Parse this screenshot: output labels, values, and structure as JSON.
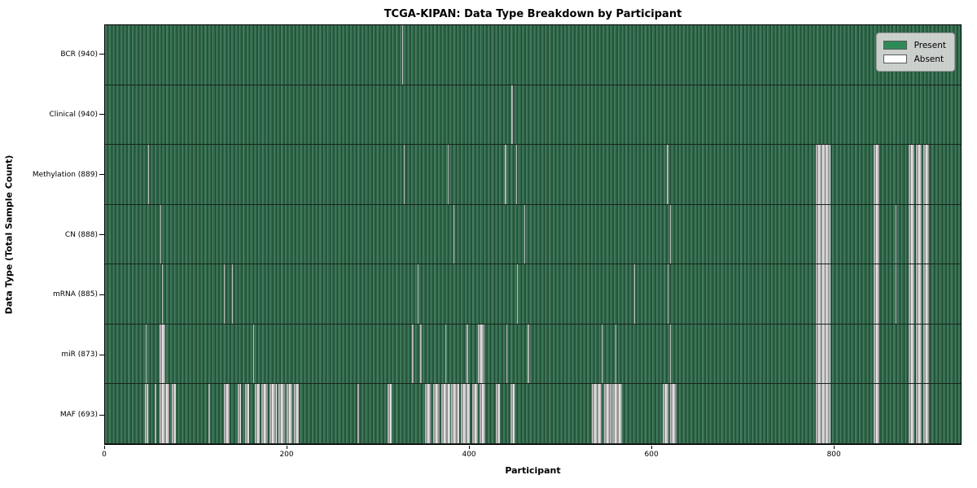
{
  "chart_data": {
    "type": "heatmap",
    "title": "TCGA-KIPAN: Data Type Breakdown by Participant",
    "xlabel": "Participant",
    "ylabel": "Data Type (Total Sample Count)",
    "x_max": 940,
    "x_ticks": [
      0,
      200,
      400,
      600,
      800
    ],
    "grid": false,
    "legend": {
      "position": "upper right",
      "entries": [
        {
          "label": "Present",
          "color": "#2e8b57"
        },
        {
          "label": "Absent",
          "color": "#ffffff"
        }
      ]
    },
    "cell_colors": {
      "present": "#2e8b57",
      "present_edge_dark": "#214f37",
      "absent": "#ffffff",
      "absent_shade": "#8f8f8f"
    },
    "rows": [
      {
        "label": "BCR (940)",
        "total_samples": 940,
        "absent_ranges": [
          [
            326.6,
            327.8
          ]
        ]
      },
      {
        "label": "Clinical (940)",
        "total_samples": 940,
        "absent_ranges": [
          [
            446.6,
            447.8
          ]
        ]
      },
      {
        "label": "Methylation (889)",
        "total_samples": 889,
        "absent_ranges": [
          [
            47,
            48.2
          ],
          [
            328,
            329.2
          ],
          [
            376.5,
            377.7
          ],
          [
            439.5,
            440.7
          ],
          [
            451.5,
            452.7
          ],
          [
            617.5,
            618.7
          ],
          [
            781,
            797
          ],
          [
            844,
            851
          ],
          [
            883,
            889
          ],
          [
            890.5,
            897
          ],
          [
            898.5,
            905
          ]
        ]
      },
      {
        "label": "CN (888)",
        "total_samples": 888,
        "absent_ranges": [
          [
            60.5,
            61.7
          ],
          [
            382.5,
            383.7
          ],
          [
            460.5,
            461.7
          ],
          [
            620.5,
            621.7
          ],
          [
            781,
            797
          ],
          [
            844,
            851
          ],
          [
            868.5,
            869.7
          ],
          [
            883,
            889
          ],
          [
            890.5,
            897
          ],
          [
            898.5,
            905
          ]
        ]
      },
      {
        "label": "mRNA (885)",
        "total_samples": 885,
        "absent_ranges": [
          [
            62.5,
            63.7
          ],
          [
            130.5,
            131.7
          ],
          [
            139.5,
            140.7
          ],
          [
            343.5,
            344.7
          ],
          [
            452.5,
            453.7
          ],
          [
            581.5,
            582.7
          ],
          [
            618,
            619.2
          ],
          [
            781,
            797
          ],
          [
            844,
            851
          ],
          [
            868.5,
            869.7
          ],
          [
            883,
            889
          ],
          [
            890.5,
            897
          ],
          [
            898.5,
            905
          ]
        ]
      },
      {
        "label": "miR (873)",
        "total_samples": 873,
        "absent_ranges": [
          [
            44.5,
            45.7
          ],
          [
            59.5,
            66
          ],
          [
            162.5,
            163.7
          ],
          [
            337.5,
            338.7
          ],
          [
            346.5,
            347.7
          ],
          [
            373.5,
            374.7
          ],
          [
            397.5,
            398.7
          ],
          [
            409.5,
            417
          ],
          [
            440.5,
            441.7
          ],
          [
            464.5,
            465.7
          ],
          [
            545.5,
            546.7
          ],
          [
            560.5,
            561.7
          ],
          [
            620.5,
            621.7
          ],
          [
            781,
            797
          ],
          [
            844,
            851
          ],
          [
            883,
            889
          ],
          [
            890.5,
            897
          ],
          [
            898.5,
            905
          ]
        ]
      },
      {
        "label": "MAF (693)",
        "total_samples": 693,
        "absent_ranges": [
          [
            44,
            47.5
          ],
          [
            54.5,
            56
          ],
          [
            59.5,
            70.5
          ],
          [
            73.5,
            77.5
          ],
          [
            113.5,
            115
          ],
          [
            130.5,
            136.5
          ],
          [
            145.5,
            149.5
          ],
          [
            153.5,
            158.5
          ],
          [
            164.5,
            170
          ],
          [
            171.5,
            178.5
          ],
          [
            181,
            189
          ],
          [
            190.5,
            198
          ],
          [
            199.5,
            205.5
          ],
          [
            207.5,
            212.5
          ],
          [
            277.5,
            279
          ],
          [
            310.5,
            314.5
          ],
          [
            351.5,
            357.5
          ],
          [
            360,
            368
          ],
          [
            369.5,
            379
          ],
          [
            380.5,
            389
          ],
          [
            390.5,
            400.5
          ],
          [
            403,
            410
          ],
          [
            411.5,
            417.5
          ],
          [
            429.5,
            433.5
          ],
          [
            445.5,
            449.5
          ],
          [
            534.5,
            545.5
          ],
          [
            548,
            556
          ],
          [
            557.5,
            567.5
          ],
          [
            613,
            619
          ],
          [
            620.5,
            627.5
          ],
          [
            781,
            797
          ],
          [
            844,
            851
          ],
          [
            883,
            889
          ],
          [
            890.5,
            897
          ],
          [
            898.5,
            905
          ]
        ]
      }
    ]
  }
}
